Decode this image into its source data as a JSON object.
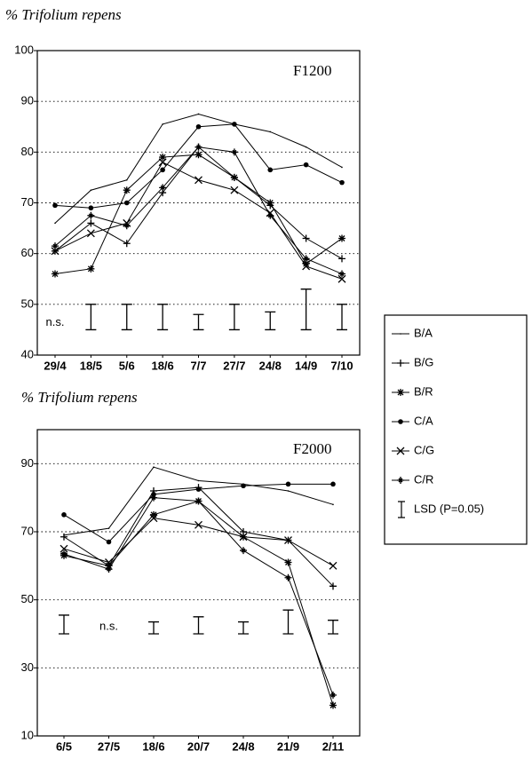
{
  "chart_data": [
    {
      "type": "line",
      "title": "% Trifolium repens",
      "panel_label": "F1200",
      "categories": [
        "29/4",
        "18/5",
        "5/6",
        "18/6",
        "7/7",
        "27/7",
        "24/8",
        "14/9",
        "7/10"
      ],
      "ylim": [
        40,
        100
      ],
      "yticks": [
        40,
        50,
        60,
        70,
        80,
        90,
        100
      ],
      "grid": true,
      "color": "#000000",
      "series": [
        {
          "name": "B/A",
          "marker": "none",
          "values": [
            66,
            72.5,
            74.5,
            85.5,
            87.5,
            85.5,
            84,
            81,
            77
          ]
        },
        {
          "name": "B/G",
          "marker": "plus",
          "values": [
            60.5,
            66,
            62,
            72,
            81,
            75,
            69.5,
            63,
            59
          ]
        },
        {
          "name": "B/R",
          "marker": "asterisk",
          "values": [
            56,
            57,
            72.5,
            79,
            79.5,
            75,
            70,
            58,
            63
          ]
        },
        {
          "name": "C/A",
          "marker": "dot",
          "values": [
            69.5,
            69,
            70,
            76.5,
            85,
            85.5,
            76.5,
            77.5,
            74
          ]
        },
        {
          "name": "C/G",
          "marker": "x",
          "values": [
            60.5,
            64,
            66,
            78,
            74.5,
            72.5,
            68,
            57.5,
            55
          ]
        },
        {
          "name": "C/R",
          "marker": "star",
          "values": [
            61.5,
            67.5,
            65.5,
            73,
            81,
            80,
            67.5,
            59,
            56
          ]
        }
      ],
      "lsd_label": "LSD (P=0.05)",
      "ns_label": "n.s.",
      "lsd_low": [
        null,
        45,
        45,
        45,
        45,
        45,
        45,
        45,
        45
      ],
      "lsd_high": [
        null,
        50,
        50,
        50,
        48,
        50,
        48.5,
        53,
        50
      ]
    },
    {
      "type": "line",
      "title": "% Trifolium repens",
      "panel_label": "F2000",
      "categories": [
        "6/5",
        "27/5",
        "18/6",
        "20/7",
        "24/8",
        "21/9",
        "2/11"
      ],
      "ylim": [
        10,
        100
      ],
      "yticks": [
        10,
        30,
        50,
        70,
        90
      ],
      "grid": true,
      "color": "#000000",
      "series": [
        {
          "marker": "none",
          "values": [
            69,
            71,
            89,
            85,
            84,
            82,
            78
          ]
        },
        {
          "marker": "plus",
          "values": [
            68.5,
            60,
            82,
            83,
            70,
            67.5,
            54
          ]
        },
        {
          "marker": "asterisk",
          "values": [
            63,
            60,
            75,
            79,
            68.5,
            61,
            19
          ]
        },
        {
          "marker": "dot",
          "values": [
            75,
            67,
            81,
            82.5,
            83.5,
            84,
            84
          ]
        },
        {
          "marker": "x",
          "values": [
            65,
            61,
            74,
            72,
            68.5,
            67.5,
            60
          ]
        },
        {
          "marker": "star",
          "values": [
            63.5,
            59,
            80,
            79,
            64.5,
            56.5,
            22
          ]
        }
      ],
      "ns_label": "n.s.",
      "lsd_low": [
        40,
        null,
        40,
        40,
        40,
        40,
        40
      ],
      "lsd_high": [
        45.5,
        null,
        43.5,
        45,
        43.5,
        47,
        44
      ]
    }
  ]
}
